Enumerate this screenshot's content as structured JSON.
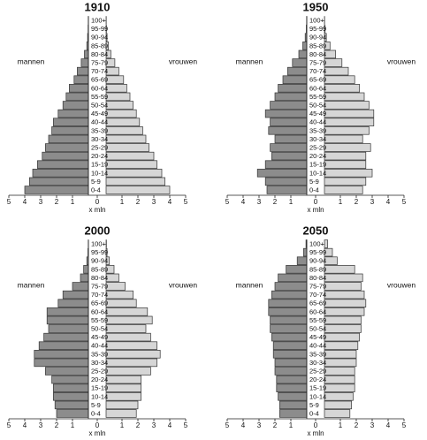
{
  "chart_data": [
    {
      "type": "pyramid",
      "title": "1910",
      "xlabel": "x mln",
      "categories": [
        "0-4",
        "5-9",
        "10-14",
        "15-19",
        "20-24",
        "25-29",
        "30-34",
        "35-39",
        "40-44",
        "45-49",
        "50-54",
        "55-59",
        "60-64",
        "65-69",
        "70-74",
        "75-79",
        "80-84",
        "85-89",
        "90-94",
        "95-99",
        "100+"
      ],
      "series": [
        {
          "name": "mannen",
          "color": "#8c8c8c",
          "values": [
            4.0,
            3.7,
            3.5,
            3.2,
            2.9,
            2.7,
            2.5,
            2.3,
            2.2,
            1.9,
            1.6,
            1.4,
            1.2,
            0.9,
            0.7,
            0.45,
            0.25,
            0.1,
            0.05,
            0.02,
            0.01
          ]
        },
        {
          "name": "vrouwen",
          "color": "#d6d6d6",
          "values": [
            4.0,
            3.7,
            3.5,
            3.2,
            3.0,
            2.7,
            2.5,
            2.3,
            2.1,
            1.9,
            1.7,
            1.5,
            1.3,
            1.1,
            0.8,
            0.55,
            0.3,
            0.15,
            0.06,
            0.02,
            0.01
          ]
        }
      ],
      "xlim": [
        -5,
        5
      ],
      "xticks": [
        {
          "value": -5,
          "label": "5"
        },
        {
          "value": -4,
          "label": "4"
        },
        {
          "value": -3,
          "label": "3"
        },
        {
          "value": -2,
          "label": "2"
        },
        {
          "value": -1,
          "label": "1"
        },
        0,
        1,
        2,
        3,
        4,
        5
      ]
    },
    {
      "type": "pyramid",
      "title": "1950",
      "xlabel": "x mln",
      "categories": [
        "0-4",
        "5-9",
        "10-14",
        "15-19",
        "20-24",
        "25-29",
        "30-34",
        "35-39",
        "40-44",
        "45-49",
        "50-54",
        "55-59",
        "60-64",
        "65-69",
        "70-74",
        "75-79",
        "80-84",
        "85-89",
        "90-94",
        "95-99",
        "100+"
      ],
      "series": [
        {
          "name": "mannen",
          "color": "#8c8c8c",
          "values": [
            2.5,
            2.6,
            3.1,
            2.6,
            2.2,
            2.3,
            2.0,
            2.4,
            2.3,
            2.6,
            2.3,
            2.0,
            1.8,
            1.5,
            1.2,
            0.9,
            0.5,
            0.25,
            0.1,
            0.03,
            0.01
          ]
        },
        {
          "name": "vrouwen",
          "color": "#d6d6d6",
          "values": [
            2.4,
            2.6,
            3.0,
            2.6,
            2.6,
            2.9,
            2.4,
            2.8,
            3.1,
            3.1,
            2.8,
            2.5,
            2.2,
            1.9,
            1.5,
            1.1,
            0.7,
            0.35,
            0.12,
            0.04,
            0.01
          ]
        }
      ],
      "xlim": [
        -5,
        5
      ],
      "xticks": [
        {
          "value": -5,
          "label": "5"
        },
        {
          "value": -4,
          "label": "4"
        },
        {
          "value": -3,
          "label": "3"
        },
        {
          "value": -2,
          "label": "2"
        },
        {
          "value": -1,
          "label": "1"
        },
        0,
        1,
        2,
        3,
        4,
        5
      ]
    },
    {
      "type": "pyramid",
      "title": "2000",
      "xlabel": "x mln",
      "categories": [
        "0-4",
        "5-9",
        "10-14",
        "15-19",
        "20-24",
        "25-29",
        "30-34",
        "35-39",
        "40-44",
        "45-49",
        "50-54",
        "55-59",
        "60-64",
        "65-69",
        "70-74",
        "75-79",
        "80-84",
        "85-89",
        "90-94",
        "95-99",
        "100+"
      ],
      "series": [
        {
          "name": "mannen",
          "color": "#8c8c8c",
          "values": [
            2.0,
            2.1,
            2.2,
            2.2,
            2.3,
            2.7,
            3.4,
            3.4,
            3.1,
            2.8,
            2.5,
            2.6,
            2.6,
            1.9,
            1.6,
            1.0,
            0.5,
            0.3,
            0.1,
            0.03,
            0.01
          ]
        },
        {
          "name": "vrouwen",
          "color": "#d6d6d6",
          "values": [
            1.9,
            2.0,
            2.2,
            2.2,
            2.2,
            2.8,
            3.2,
            3.4,
            3.2,
            2.8,
            2.5,
            2.9,
            2.6,
            1.9,
            1.7,
            1.2,
            0.8,
            0.5,
            0.2,
            0.06,
            0.02
          ]
        }
      ],
      "xlim": [
        -5,
        5
      ],
      "xticks": [
        {
          "value": -5,
          "label": "5"
        },
        {
          "value": -4,
          "label": "4"
        },
        {
          "value": -3,
          "label": "3"
        },
        {
          "value": -2,
          "label": "2"
        },
        {
          "value": -1,
          "label": "1"
        },
        0,
        1,
        2,
        3,
        4,
        5
      ]
    },
    {
      "type": "pyramid",
      "title": "2050",
      "xlabel": "x mln",
      "categories": [
        "0-4",
        "5-9",
        "10-14",
        "15-19",
        "20-24",
        "25-29",
        "30-34",
        "35-39",
        "40-44",
        "45-49",
        "50-54",
        "55-59",
        "60-64",
        "65-69",
        "70-74",
        "75-79",
        "80-84",
        "85-89",
        "90-94",
        "95-99",
        "100+"
      ],
      "series": [
        {
          "name": "mannen",
          "color": "#8c8c8c",
          "values": [
            1.7,
            1.7,
            1.8,
            1.9,
            1.9,
            2.0,
            2.0,
            2.1,
            2.1,
            2.2,
            2.3,
            2.3,
            2.4,
            2.4,
            2.2,
            2.0,
            1.8,
            1.3,
            0.6,
            0.2,
            0.05
          ]
        },
        {
          "name": "vrouwen",
          "color": "#d6d6d6",
          "values": [
            1.6,
            1.7,
            1.8,
            1.9,
            1.9,
            1.9,
            2.0,
            2.0,
            2.1,
            2.2,
            2.3,
            2.3,
            2.5,
            2.6,
            2.5,
            2.3,
            2.4,
            1.9,
            0.8,
            0.5,
            0.2
          ]
        }
      ],
      "xlim": [
        -5,
        5
      ],
      "xticks": [
        {
          "value": -5,
          "label": "5"
        },
        {
          "value": -4,
          "label": "4"
        },
        {
          "value": -3,
          "label": "3"
        },
        {
          "value": -2,
          "label": "2"
        },
        {
          "value": -1,
          "label": "1"
        },
        0,
        1,
        2,
        3,
        4,
        5
      ]
    }
  ]
}
